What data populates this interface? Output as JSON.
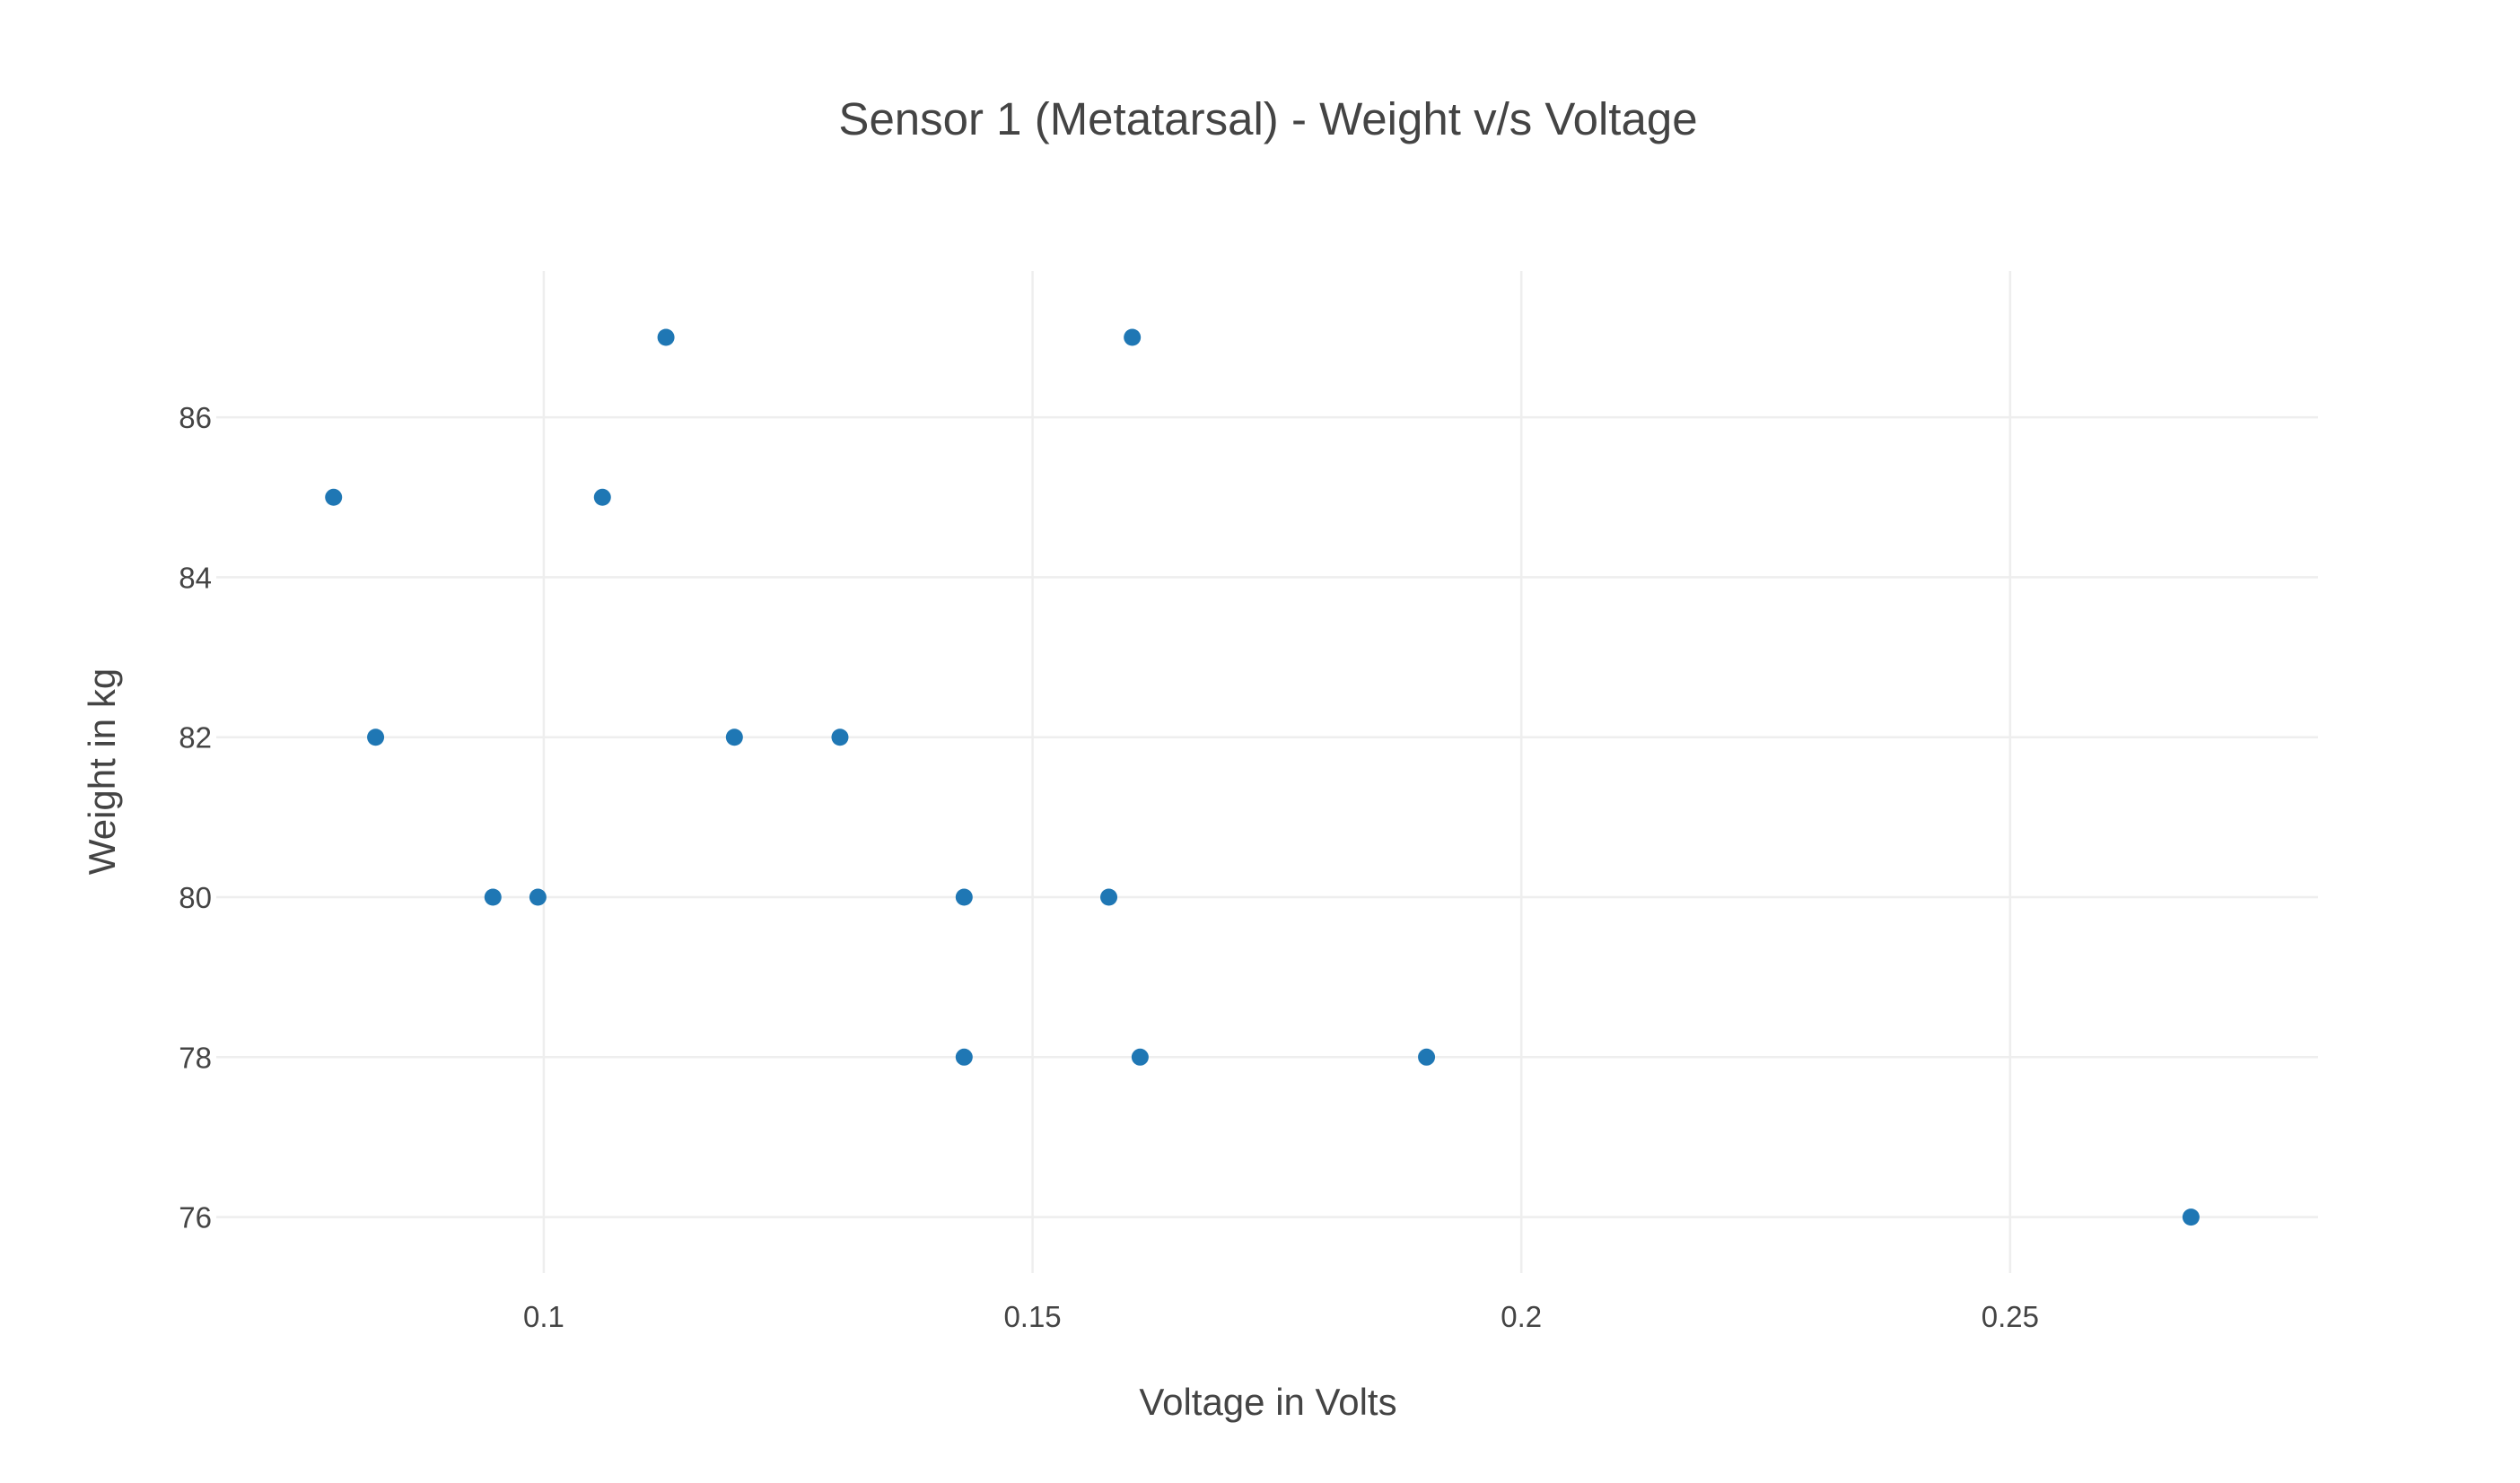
{
  "chart_data": {
    "type": "scatter",
    "title": "Sensor 1 (Metatarsal) - Weight v/s Voltage",
    "xlabel": "Voltage in Volts",
    "ylabel": "Weight in kg",
    "xlim": [
      0.0665,
      0.2815
    ],
    "ylim": [
      75.3,
      87.83
    ],
    "grid": true,
    "marker_color": "#1f77b4",
    "x_ticks": [
      {
        "value": 0.1,
        "label": "0.1"
      },
      {
        "value": 0.15,
        "label": "0.15"
      },
      {
        "value": 0.2,
        "label": "0.2"
      },
      {
        "value": 0.25,
        "label": "0.25"
      }
    ],
    "y_ticks": [
      {
        "value": 76,
        "label": "76"
      },
      {
        "value": 78,
        "label": "78"
      },
      {
        "value": 80,
        "label": "80"
      },
      {
        "value": 82,
        "label": "82"
      },
      {
        "value": 84,
        "label": "84"
      },
      {
        "value": 86,
        "label": "86"
      }
    ],
    "points": [
      {
        "x": 0.0785,
        "y": 85
      },
      {
        "x": 0.0828,
        "y": 82
      },
      {
        "x": 0.0948,
        "y": 80
      },
      {
        "x": 0.0994,
        "y": 80
      },
      {
        "x": 0.106,
        "y": 85
      },
      {
        "x": 0.1125,
        "y": 87
      },
      {
        "x": 0.1195,
        "y": 82
      },
      {
        "x": 0.1303,
        "y": 82
      },
      {
        "x": 0.143,
        "y": 80
      },
      {
        "x": 0.143,
        "y": 78
      },
      {
        "x": 0.1578,
        "y": 80
      },
      {
        "x": 0.1602,
        "y": 87
      },
      {
        "x": 0.161,
        "y": 78
      },
      {
        "x": 0.1903,
        "y": 78
      },
      {
        "x": 0.2685,
        "y": 76
      }
    ]
  }
}
